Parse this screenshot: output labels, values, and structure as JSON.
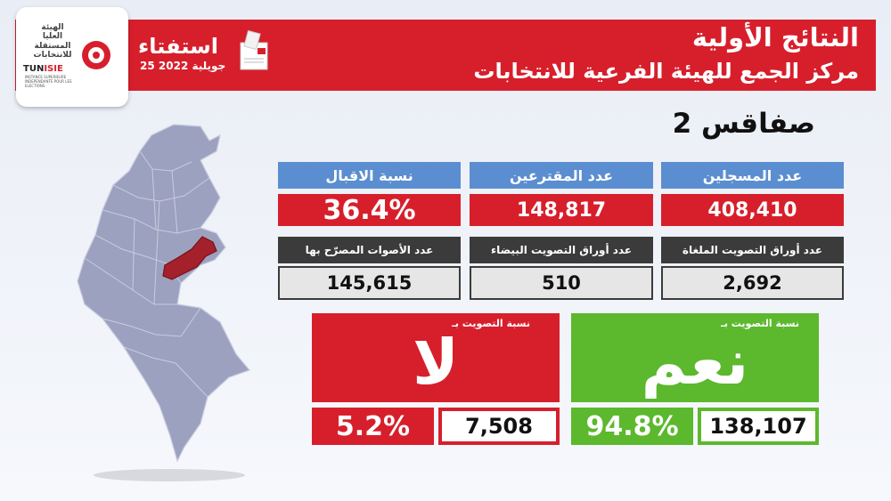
{
  "colors": {
    "red": "#d71f2c",
    "blue": "#5b8ed0",
    "dark": "#3b3b3b",
    "green": "#5cb82d",
    "map_fill": "#9ca1bf",
    "map_highlight": "#a4202b"
  },
  "header": {
    "title": "النتائج الأولية",
    "subtitle": "مركز الجمع للهيئة الفرعية للانتخابات"
  },
  "logo": {
    "arabic_lines": [
      "الهيئة",
      "العليا",
      "المستقلة",
      "للانتخابات"
    ],
    "en_prefix": "TUN",
    "en_suffix": "ISIE",
    "subtext": "INSTANCE SUPERIEURE INDEPENDANTE POUR LES ELECTIONS"
  },
  "referendum": {
    "word": "استفتاء",
    "date": "25 جويلية 2022"
  },
  "region": "صفاقس 2",
  "stats_top": [
    {
      "label": "نسبة الاقبال",
      "value": "36.4%"
    },
    {
      "label": "عدد المقترعين",
      "value": "148,817"
    },
    {
      "label": "عدد المسجلين",
      "value": "408,410"
    }
  ],
  "stats_mid": [
    {
      "label": "عدد الأصوات المصرّح بها",
      "value": "145,615"
    },
    {
      "label": "عدد أوراق التصويت البيضاء",
      "value": "510"
    },
    {
      "label": "عدد أوراق التصويت الملغاة",
      "value": "2,692"
    }
  ],
  "no_vote": {
    "label": "نسبة التصويت بـ",
    "word": "لا",
    "percent": "5.2%",
    "count": "7,508"
  },
  "yes_vote": {
    "label": "نسبة التصويت بـ",
    "word": "نعم",
    "percent": "94.8%",
    "count": "138,107"
  }
}
